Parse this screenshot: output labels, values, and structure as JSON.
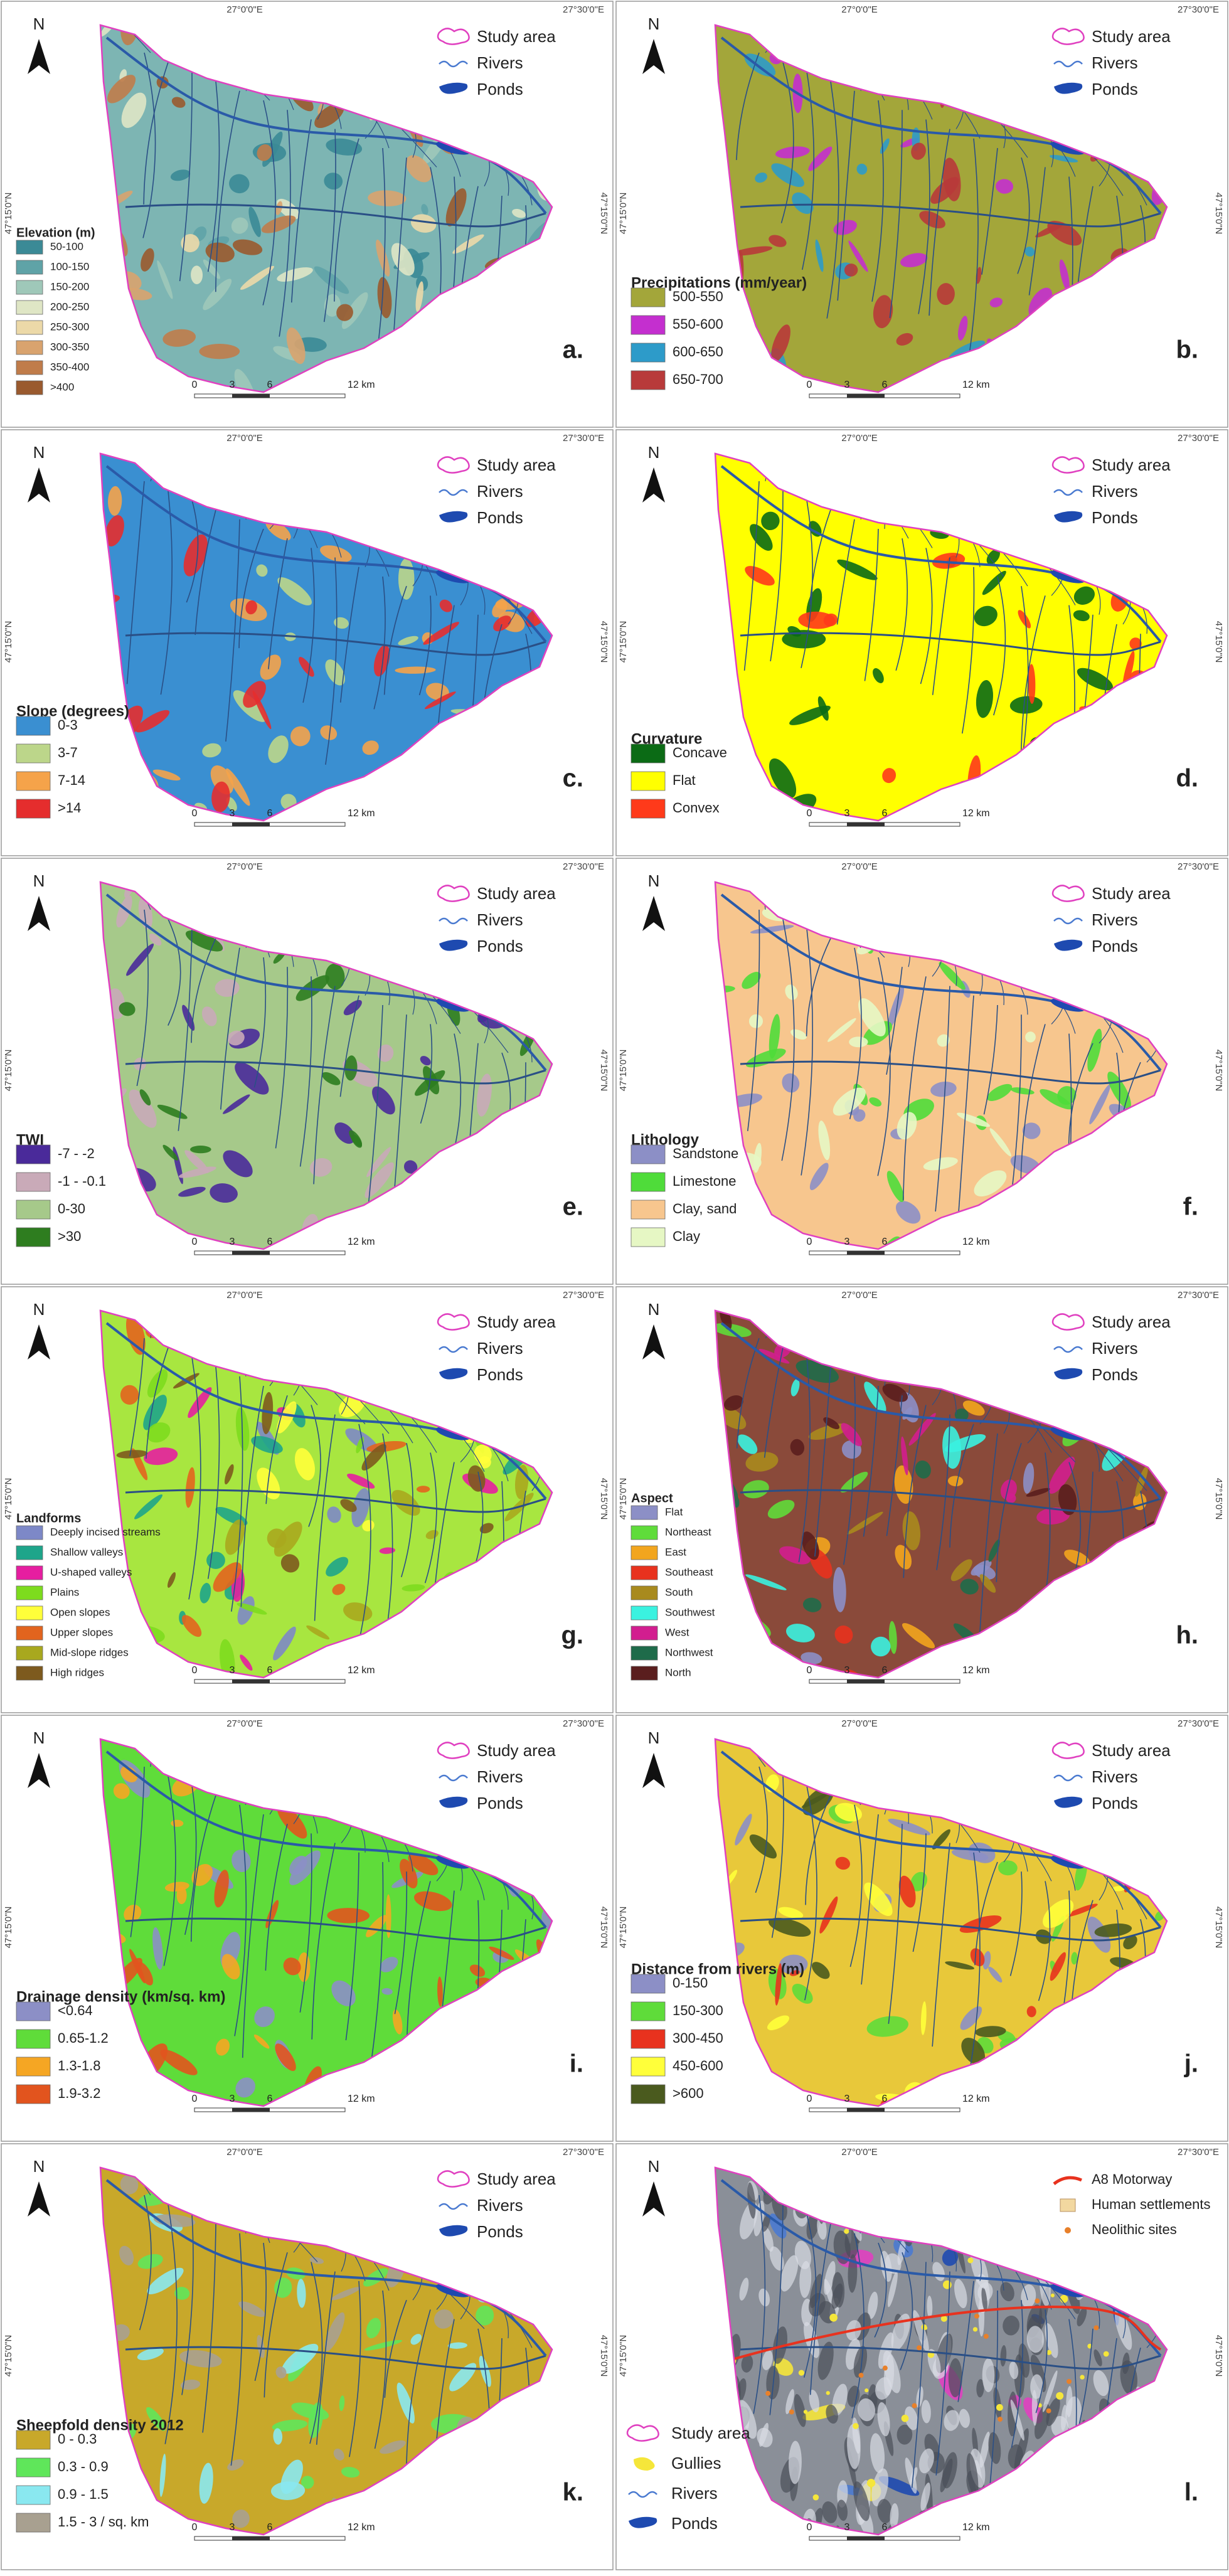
{
  "figure": {
    "common": {
      "north": "N",
      "map_legend": [
        "Study area",
        "Rivers",
        "Ponds"
      ],
      "scale": [
        "0",
        "3",
        "6",
        "12 km"
      ],
      "lon": [
        "27°0'0\"E",
        "27°30'0\"E"
      ],
      "lat": "47°15'0\"N"
    },
    "panels": [
      {
        "letter": "a.",
        "legend_title": "Elevation (m)",
        "base": "#7db5b3",
        "items": [
          {
            "label": "50-100",
            "color": "#3b8a96"
          },
          {
            "label": "100-150",
            "color": "#5fa3a7"
          },
          {
            "label": "150-200",
            "color": "#9fc8b9"
          },
          {
            "label": "200-250",
            "color": "#dfe6c5"
          },
          {
            "label": "250-300",
            "color": "#ecd9a8"
          },
          {
            "label": "300-350",
            "color": "#d9a36e"
          },
          {
            "label": "350-400",
            "color": "#c07c4a"
          },
          {
            "label": ">400",
            "color": "#9a5a2e"
          }
        ]
      },
      {
        "letter": "b.",
        "legend_title": "Precipitations (mm/year)",
        "base": "#a3a63a",
        "items": [
          {
            "label": "500-550",
            "color": "#a3a63a"
          },
          {
            "label": "550-600",
            "color": "#c42fcf"
          },
          {
            "label": "600-650",
            "color": "#2d9bc9"
          },
          {
            "label": "650-700",
            "color": "#b83a3a"
          }
        ]
      },
      {
        "letter": "c.",
        "legend_title": "Slope (degrees)",
        "base": "#3a8fd1",
        "items": [
          {
            "label": "0-3",
            "color": "#3a8fd1"
          },
          {
            "label": "3-7",
            "color": "#bcd68a"
          },
          {
            "label": "7-14",
            "color": "#f5a34a"
          },
          {
            "label": ">14",
            "color": "#e52d2d"
          }
        ]
      },
      {
        "letter": "d.",
        "legend_title": "Curvature",
        "base": "#ffff00",
        "items": [
          {
            "label": "Concave",
            "color": "#0b6b15"
          },
          {
            "label": "Flat",
            "color": "#ffff00"
          },
          {
            "label": "Convex",
            "color": "#ff3a1a"
          }
        ]
      },
      {
        "letter": "e.",
        "legend_title": "TWI",
        "base": "#a6c98a",
        "items": [
          {
            "label": "-7 - -2",
            "color": "#4a2a9a"
          },
          {
            "label": "-1 - -0.1",
            "color": "#c9aab8"
          },
          {
            "label": "0-30",
            "color": "#a6c98a"
          },
          {
            "label": ">30",
            "color": "#2e7d1f"
          }
        ]
      },
      {
        "letter": "f.",
        "legend_title": "Lithology",
        "base": "#f7c68e",
        "items": [
          {
            "label": "Sandstone",
            "color": "#8c8fc6"
          },
          {
            "label": "Limestone",
            "color": "#4fdc3a"
          },
          {
            "label": "Clay, sand",
            "color": "#f7c68e"
          },
          {
            "label": "Clay",
            "color": "#e6f7c4"
          }
        ]
      },
      {
        "letter": "g.",
        "legend_title": "Landforms",
        "base": "#a8e640",
        "items": [
          {
            "label": "Deeply incised streams",
            "color": "#7d88c7"
          },
          {
            "label": "Shallow valleys",
            "color": "#1ea58a"
          },
          {
            "label": "U-shaped valleys",
            "color": "#e61ea0"
          },
          {
            "label": "Plains",
            "color": "#7ddc1e"
          },
          {
            "label": "Open slopes",
            "color": "#ffff3a"
          },
          {
            "label": "Upper slopes",
            "color": "#e2641e"
          },
          {
            "label": "Mid-slope ridges",
            "color": "#a8a81e"
          },
          {
            "label": "High ridges",
            "color": "#7d5a1e"
          }
        ]
      },
      {
        "letter": "h.",
        "legend_title": "Aspect",
        "base": "#8a4a3a",
        "items": [
          {
            "label": "Flat",
            "color": "#8c8fc6"
          },
          {
            "label": "Northeast",
            "color": "#5fdc3a"
          },
          {
            "label": "East",
            "color": "#f2a51e"
          },
          {
            "label": "Southeast",
            "color": "#e8321e"
          },
          {
            "label": "South",
            "color": "#a88a1e"
          },
          {
            "label": "Southwest",
            "color": "#3af2e0"
          },
          {
            "label": "West",
            "color": "#d21e8f"
          },
          {
            "label": "Northwest",
            "color": "#1e6b4a"
          },
          {
            "label": "North",
            "color": "#5a1e1e"
          }
        ]
      },
      {
        "letter": "i.",
        "legend_title": "Drainage density (km/sq. km)",
        "base": "#5fdc3a",
        "items": [
          {
            "label": "<0.64",
            "color": "#8c8fc6"
          },
          {
            "label": "0.65-1.2",
            "color": "#5fdc3a"
          },
          {
            "label": "1.3-1.8",
            "color": "#f5a623"
          },
          {
            "label": "1.9-3.2",
            "color": "#e2541e"
          }
        ]
      },
      {
        "letter": "j.",
        "legend_title": "Distance from rivers (m)",
        "base": "#e8c83a",
        "items": [
          {
            "label": "0-150",
            "color": "#8c8fc6"
          },
          {
            "label": "150-300",
            "color": "#5fdc3a"
          },
          {
            "label": "300-450",
            "color": "#e8321e"
          },
          {
            "label": "450-600",
            "color": "#ffff3a"
          },
          {
            "label": ">600",
            "color": "#4a5a1e"
          }
        ]
      },
      {
        "letter": "k.",
        "legend_title": "Sheepfold density 2012",
        "base": "#c8a82a",
        "items": [
          {
            "label": "0 - 0.3",
            "color": "#c8a82a"
          },
          {
            "label": "0.3 - 0.9",
            "color": "#5fe65a"
          },
          {
            "label": "0.9 - 1.5",
            "color": "#8ae8f0"
          },
          {
            "label": "1.5 - 3 / sq. km",
            "color": "#a8a090"
          }
        ]
      },
      {
        "letter": "l.",
        "base": "#8a8f98",
        "items": [
          {
            "label": "Study area",
            "color": "#e040c0"
          },
          {
            "label": "Gullies",
            "color": "#f5e63a"
          },
          {
            "label": "Rivers",
            "color": "#4a7ad0"
          },
          {
            "label": "Ponds",
            "color": "#1e4ab0"
          }
        ],
        "top_legend": [
          {
            "label": "A8 Motorway",
            "color": "#e8321e"
          },
          {
            "label": "Human settlements",
            "color": "#f2d8a0"
          },
          {
            "label": "Neolithic sites",
            "color": "#e8802a"
          }
        ]
      }
    ]
  }
}
